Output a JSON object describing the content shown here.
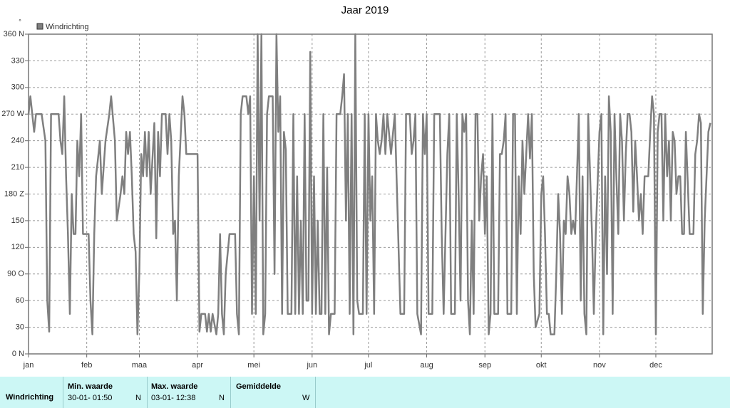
{
  "chart_data": {
    "type": "line",
    "title": "Jaar 2019",
    "y_label": "°",
    "xlim": [
      1,
      365
    ],
    "xticks": [
      {
        "value": 1,
        "label": "jan"
      },
      {
        "value": 32,
        "label": "feb"
      },
      {
        "value": 60,
        "label": "maa"
      },
      {
        "value": 91,
        "label": "apr"
      },
      {
        "value": 121,
        "label": "mei"
      },
      {
        "value": 152,
        "label": "jun"
      },
      {
        "value": 182,
        "label": "jul"
      },
      {
        "value": 213,
        "label": "aug"
      },
      {
        "value": 244,
        "label": "sep"
      },
      {
        "value": 274,
        "label": "okt"
      },
      {
        "value": 305,
        "label": "nov"
      },
      {
        "value": 335,
        "label": "dec"
      }
    ],
    "ylim": [
      0,
      360
    ],
    "yticks": [
      {
        "value": 0,
        "label": "0 N"
      },
      30,
      60,
      {
        "value": 90,
        "label": "90 O"
      },
      120,
      150,
      {
        "value": 180,
        "label": "180 Z"
      },
      210,
      240,
      {
        "value": 270,
        "label": "270 W"
      },
      300,
      330,
      {
        "value": 360,
        "label": "360 N"
      }
    ],
    "grid": true,
    "series": [
      {
        "name": "Windrichting",
        "color": "#7f7f7f",
        "x": [
          1,
          2,
          4,
          5,
          8,
          10,
          11,
          12,
          13,
          17,
          18,
          19,
          20,
          21,
          22,
          23,
          24,
          25,
          26,
          27,
          28,
          29,
          30,
          33,
          34,
          35,
          36,
          37,
          39,
          40,
          42,
          44,
          45,
          47,
          48,
          50,
          51,
          52,
          53,
          54,
          55,
          56,
          57,
          58,
          59,
          60,
          61,
          62,
          63,
          64,
          65,
          66,
          68,
          69,
          70,
          71,
          72,
          74,
          75,
          76,
          77,
          78,
          79,
          80,
          81,
          83,
          84,
          85,
          90,
          91,
          92,
          93,
          95,
          96,
          97,
          98,
          99,
          101,
          102,
          103,
          104,
          105,
          106,
          108,
          111,
          112,
          113,
          114,
          115,
          117,
          118,
          119,
          120,
          121,
          122,
          123,
          124,
          125,
          126,
          127,
          128,
          129,
          131,
          132,
          133,
          134,
          135,
          136,
          137,
          138,
          139,
          141,
          142,
          143,
          144,
          145,
          146,
          147,
          148,
          149,
          150,
          151,
          152,
          153,
          154,
          155,
          156,
          157,
          158,
          159,
          160,
          161,
          162,
          164,
          165,
          167,
          168,
          169,
          170,
          171,
          172,
          173,
          174,
          175,
          176,
          177,
          179,
          180,
          181,
          182,
          183,
          184,
          185,
          186,
          187,
          188,
          189,
          190,
          191,
          192,
          194,
          196,
          199,
          201,
          202,
          204,
          205,
          206,
          207,
          208,
          210,
          211,
          212,
          213,
          214,
          216,
          217,
          220,
          221,
          222,
          223,
          224,
          225,
          226,
          228,
          229,
          230,
          231,
          232,
          233,
          234,
          235,
          236,
          237,
          238,
          239,
          240,
          241,
          242,
          243,
          244,
          245,
          246,
          247,
          248,
          249,
          251,
          252,
          253,
          254,
          255,
          256,
          258,
          259,
          260,
          261,
          262,
          263,
          264,
          265,
          267,
          268,
          269,
          270,
          271,
          273,
          274,
          275,
          276,
          277,
          278,
          279,
          281,
          282,
          283,
          284,
          285,
          286,
          287,
          288,
          289,
          290,
          291,
          292,
          293,
          294,
          295,
          296,
          297,
          298,
          299,
          300,
          301,
          302,
          303,
          305,
          306,
          307,
          308,
          309,
          310,
          311,
          312,
          313,
          314,
          315,
          316,
          317,
          318,
          319,
          320,
          321,
          322,
          323,
          324,
          325,
          326,
          327,
          328,
          329,
          331,
          332,
          333,
          334,
          335,
          336,
          337,
          338,
          339,
          340,
          341,
          342,
          343,
          344,
          345,
          346,
          347,
          348,
          349,
          350,
          351,
          353,
          355,
          356,
          357,
          358,
          359,
          360,
          361,
          362,
          363,
          364
        ],
        "values": [
          270,
          290,
          250,
          270,
          270,
          240,
          60,
          25,
          270,
          270,
          240,
          225,
          290,
          200,
          135,
          45,
          180,
          135,
          135,
          240,
          200,
          270,
          135,
          135,
          60,
          22,
          135,
          200,
          240,
          180,
          240,
          270,
          290,
          240,
          150,
          180,
          200,
          180,
          250,
          225,
          250,
          200,
          135,
          115,
          22,
          90,
          225,
          200,
          250,
          200,
          250,
          180,
          260,
          130,
          250,
          200,
          270,
          270,
          225,
          270,
          240,
          135,
          150,
          60,
          200,
          290,
          270,
          225,
          225,
          225,
          25,
          45,
          45,
          25,
          45,
          25,
          45,
          22,
          45,
          135,
          45,
          22,
          90,
          135,
          135,
          45,
          22,
          270,
          290,
          290,
          270,
          290,
          45,
          200,
          45,
          360,
          150,
          360,
          22,
          45,
          270,
          290,
          290,
          90,
          360,
          250,
          290,
          45,
          250,
          230,
          45,
          45,
          270,
          45,
          200,
          45,
          150,
          45,
          270,
          60,
          60,
          340,
          45,
          200,
          45,
          150,
          45,
          45,
          270,
          45,
          210,
          22,
          45,
          45,
          270,
          270,
          290,
          315,
          150,
          270,
          45,
          270,
          22,
          360,
          60,
          45,
          45,
          270,
          45,
          270,
          150,
          200,
          45,
          270,
          240,
          225,
          240,
          270,
          225,
          270,
          225,
          270,
          45,
          45,
          270,
          270,
          225,
          240,
          270,
          45,
          22,
          270,
          225,
          270,
          45,
          45,
          270,
          270,
          135,
          45,
          135,
          225,
          270,
          45,
          45,
          270,
          180,
          60,
          270,
          250,
          270,
          60,
          22,
          150,
          45,
          270,
          270,
          150,
          200,
          225,
          135,
          200,
          22,
          45,
          270,
          45,
          45,
          225,
          225,
          240,
          270,
          45,
          45,
          270,
          270,
          45,
          200,
          135,
          240,
          180,
          270,
          220,
          270,
          90,
          30,
          45,
          180,
          200,
          135,
          45,
          45,
          22,
          22,
          90,
          180,
          135,
          45,
          150,
          135,
          200,
          180,
          135,
          150,
          135,
          200,
          270,
          60,
          200,
          45,
          22,
          270,
          200,
          135,
          45,
          135,
          250,
          270,
          22,
          200,
          90,
          290,
          250,
          45,
          270,
          200,
          135,
          270,
          240,
          150,
          225,
          270,
          270,
          250,
          160,
          240,
          200,
          150,
          180,
          135,
          200,
          200,
          250,
          290,
          270,
          22,
          250,
          270,
          270,
          150,
          270,
          200,
          240,
          150,
          250,
          240,
          180,
          200,
          200,
          135,
          135,
          250,
          135,
          135,
          225,
          240,
          270,
          260,
          45,
          150,
          200,
          250,
          260
        ]
      }
    ]
  },
  "summary": {
    "row_label": "Windrichting",
    "min": {
      "header": "Min. waarde",
      "time": "30-01- 01:50",
      "direction": "N"
    },
    "max": {
      "header": "Max. waarde",
      "time": "03-01- 12:38",
      "direction": "N"
    },
    "average": {
      "header": "Gemiddelde",
      "direction": "W"
    }
  }
}
